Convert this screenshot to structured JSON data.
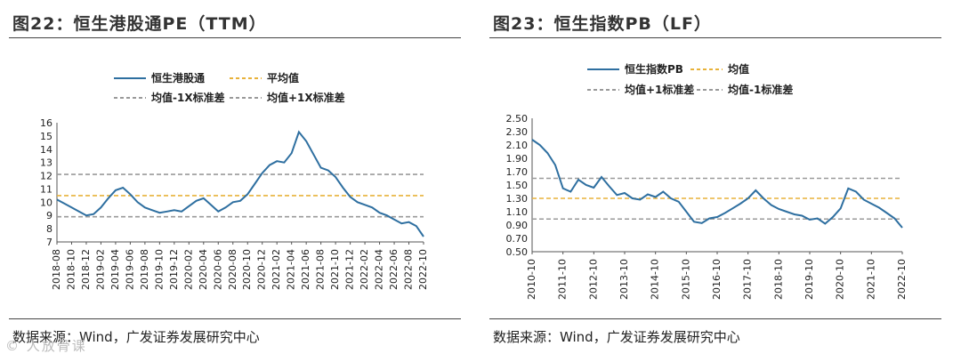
{
  "watermark": "© 人放骨课",
  "chart_data": [
    {
      "type": "line",
      "title": "图22：恒生港股通PE（TTM）",
      "source": "数据来源：Wind，广发证券发展研究中心",
      "legend": [
        "恒生港股通",
        "平均值",
        "均值-1X标准差",
        "均值+1X标准差"
      ],
      "ylim": [
        7,
        16
      ],
      "yticks": [
        "7",
        "8",
        "9",
        "10",
        "11",
        "12",
        "13",
        "14",
        "15",
        "16"
      ],
      "xticks": [
        "2018-08",
        "2018-10",
        "2018-12",
        "2019-02",
        "2019-04",
        "2019-06",
        "2019-08",
        "2019-10",
        "2019-12",
        "2020-02",
        "2020-04",
        "2020-06",
        "2020-08",
        "2020-10",
        "2020-12",
        "2021-02",
        "2021-04",
        "2021-06",
        "2021-08",
        "2021-10",
        "2021-12",
        "2022-02",
        "2022-04",
        "2022-06",
        "2022-08",
        "2022-10"
      ],
      "mean": 10.5,
      "upper": 12.1,
      "lower": 8.9,
      "colors": {
        "series": "#2e6fa0",
        "mean": "#e8b23a",
        "band": "#9a9a9a"
      },
      "series": [
        {
          "name": "恒生港股通",
          "x": [
            0,
            1,
            2,
            3,
            4,
            5,
            6,
            7,
            8,
            9,
            10,
            11,
            12,
            13,
            14,
            15,
            16,
            17,
            18,
            19,
            20,
            21,
            22,
            23,
            24,
            25,
            26,
            27,
            28,
            29,
            30,
            31,
            32,
            33,
            34,
            35,
            36,
            37,
            38,
            39,
            40,
            41,
            42,
            43,
            44,
            45,
            46,
            47,
            48,
            49,
            50
          ],
          "values": [
            10.2,
            9.9,
            9.6,
            9.3,
            9.0,
            9.1,
            9.6,
            10.3,
            10.9,
            11.1,
            10.6,
            10.0,
            9.6,
            9.4,
            9.2,
            9.3,
            9.4,
            9.3,
            9.7,
            10.1,
            10.3,
            9.8,
            9.3,
            9.6,
            10.0,
            10.1,
            10.6,
            11.4,
            12.2,
            12.8,
            13.1,
            13.0,
            13.7,
            15.3,
            14.6,
            13.6,
            12.6,
            12.4,
            11.9,
            11.1,
            10.4,
            10.0,
            9.8,
            9.6,
            9.2,
            9.0,
            8.7,
            8.4,
            8.5,
            8.2,
            7.4
          ]
        }
      ]
    },
    {
      "type": "line",
      "title": "图23：恒生指数PB（LF）",
      "source": "数据来源：Wind，广发证券发展研究中心",
      "legend": [
        "恒生指数PB",
        "均值",
        "均值+1标准差",
        "均值-1标准差"
      ],
      "ylim": [
        0.5,
        2.5
      ],
      "yticks": [
        "0.50",
        "0.70",
        "0.90",
        "1.10",
        "1.30",
        "1.50",
        "1.70",
        "1.90",
        "2.10",
        "2.30",
        "2.50"
      ],
      "xticks": [
        "2010-10",
        "2011-10",
        "2012-10",
        "2013-10",
        "2014-10",
        "2015-10",
        "2016-10",
        "2017-10",
        "2018-10",
        "2019-10",
        "2020-10",
        "2021-10",
        "2022-10"
      ],
      "mean": 1.3,
      "upper": 1.6,
      "lower": 0.99,
      "colors": {
        "series": "#2e6fa0",
        "mean": "#e8b23a",
        "band": "#9a9a9a"
      },
      "series": [
        {
          "name": "恒生指数PB",
          "x": [
            0,
            0.25,
            0.5,
            0.75,
            1,
            1.25,
            1.5,
            1.75,
            2,
            2.25,
            2.5,
            2.75,
            3,
            3.25,
            3.5,
            3.75,
            4,
            4.25,
            4.5,
            4.75,
            5,
            5.25,
            5.5,
            5.75,
            6,
            6.25,
            6.5,
            6.75,
            7,
            7.25,
            7.5,
            7.75,
            8,
            8.25,
            8.5,
            8.75,
            9,
            9.25,
            9.5,
            9.75,
            10,
            10.25,
            10.5,
            10.75,
            11,
            11.25,
            11.5,
            11.75,
            12
          ],
          "values": [
            2.18,
            2.1,
            1.98,
            1.8,
            1.45,
            1.4,
            1.58,
            1.5,
            1.46,
            1.62,
            1.48,
            1.35,
            1.38,
            1.3,
            1.28,
            1.36,
            1.32,
            1.4,
            1.3,
            1.25,
            1.1,
            0.95,
            0.93,
            1.0,
            1.02,
            1.08,
            1.15,
            1.22,
            1.3,
            1.42,
            1.3,
            1.2,
            1.14,
            1.1,
            1.06,
            1.04,
            0.98,
            1.0,
            0.92,
            1.02,
            1.15,
            1.45,
            1.4,
            1.28,
            1.22,
            1.16,
            1.08,
            1.0,
            0.86
          ]
        }
      ]
    }
  ]
}
